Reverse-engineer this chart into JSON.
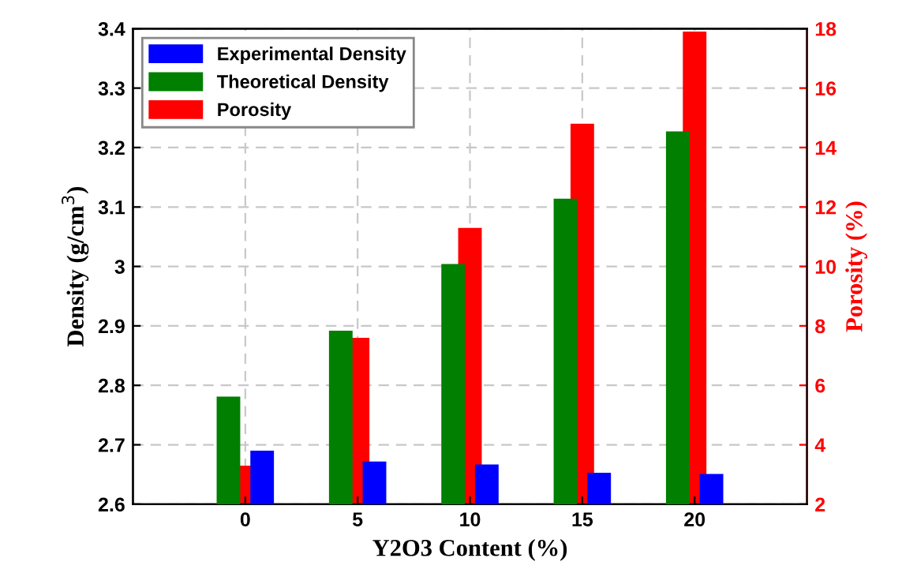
{
  "chart_data": {
    "type": "bar",
    "xlabel": "Y2O3 Content (%)",
    "ylabel": "Density (g/cm$^{3}$)",
    "y2label": "Porosity (%)",
    "x": [
      0,
      5,
      10,
      15,
      20
    ],
    "xlim": [
      -5,
      25
    ],
    "xticks": [
      0,
      5,
      10,
      15,
      20
    ],
    "ylim": [
      2.6,
      3.4
    ],
    "yticks": [
      2.6,
      2.7,
      2.8,
      2.9,
      3,
      3.1,
      3.2,
      3.3,
      3.4
    ],
    "y2lim": [
      2,
      18
    ],
    "y2ticks": [
      2,
      4,
      6,
      8,
      10,
      12,
      14,
      16,
      18
    ],
    "grid": true,
    "legend": "top left",
    "series": [
      {
        "name": "Experimental Density",
        "color": "#0000ff",
        "values": [
          2.69,
          2.672,
          2.667,
          2.653,
          2.651
        ]
      },
      {
        "name": "Theoretical Density",
        "color": "#007f00",
        "values": [
          2.781,
          2.892,
          3.004,
          3.114,
          3.227
        ]
      },
      {
        "name": "Porosity",
        "color": "#ff0000",
        "axis": "y2",
        "values": [
          3.3,
          7.6,
          11.3,
          14.8,
          17.9
        ]
      }
    ]
  }
}
